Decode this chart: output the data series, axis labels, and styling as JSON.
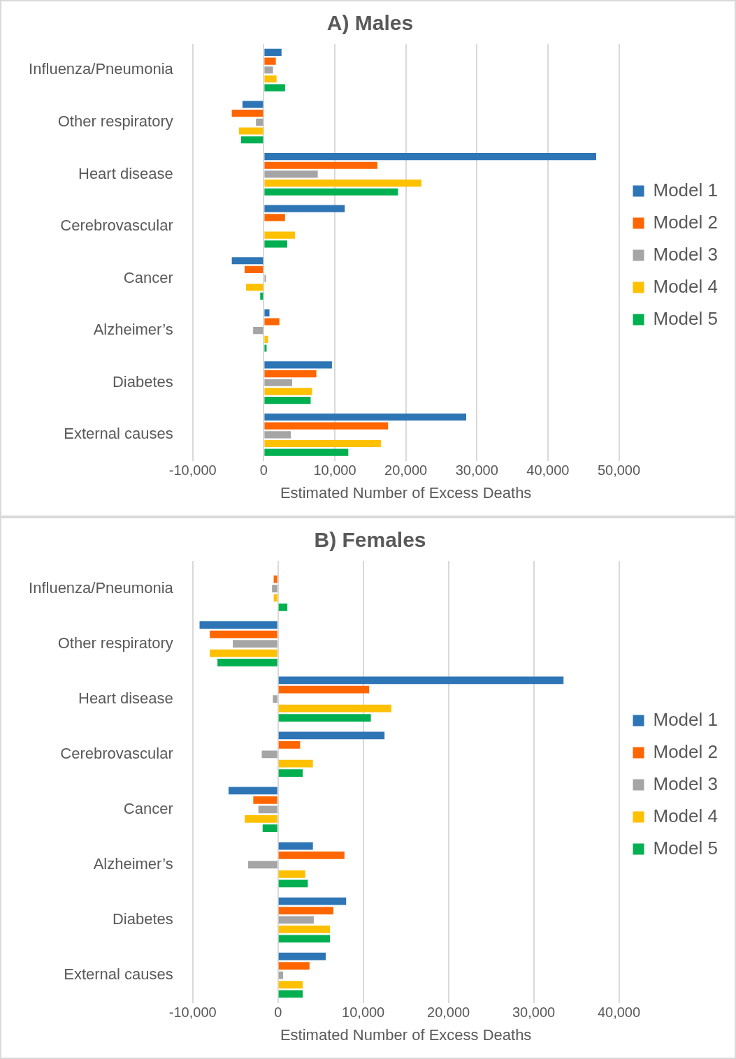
{
  "chart_data": [
    {
      "type": "bar",
      "title": "A) Males",
      "xlabel": "Estimated Number of Excess Deaths",
      "orientation": "horizontal",
      "categories": [
        "Influenza/Pneumonia",
        "Other respiratory",
        "Heart disease",
        "Cerebrovascular",
        "Cancer",
        "Alzheimer’s",
        "Diabetes",
        "External causes"
      ],
      "series": [
        {
          "name": "Model 1",
          "color": "#2e75b6",
          "values": [
            2500,
            -3000,
            46800,
            11400,
            -4500,
            800,
            9600,
            28500
          ]
        },
        {
          "name": "Model 2",
          "color": "#ff6600",
          "values": [
            1700,
            -4500,
            16000,
            3000,
            -2700,
            2200,
            7400,
            17500
          ]
        },
        {
          "name": "Model 3",
          "color": "#a5a5a5",
          "values": [
            1300,
            -1100,
            7600,
            null,
            300,
            -1500,
            4000,
            3800
          ]
        },
        {
          "name": "Model 4",
          "color": "#ffc000",
          "values": [
            1800,
            -3500,
            22200,
            4400,
            -2500,
            600,
            6800,
            16500
          ]
        },
        {
          "name": "Model 5",
          "color": "#00b050",
          "values": [
            3000,
            -3200,
            18900,
            3300,
            -500,
            400,
            6600,
            11900
          ]
        }
      ],
      "xlim": [
        -10000,
        50000
      ],
      "xticks": [
        {
          "value": -10000,
          "label": "-10,000"
        },
        0,
        {
          "value": 10000,
          "label": "10,000"
        },
        {
          "value": 20000,
          "label": "20,000"
        },
        {
          "value": 30000,
          "label": "30,000"
        },
        {
          "value": 40000,
          "label": "40,000"
        },
        {
          "value": 50000,
          "label": "50,000"
        }
      ],
      "grid": "x",
      "legend": "right"
    },
    {
      "type": "bar",
      "title": "B) Females",
      "xlabel": "Estimated Number of Excess Deaths",
      "orientation": "horizontal",
      "categories": [
        "Influenza/Pneumonia",
        "Other respiratory",
        "Heart disease",
        "Cerebrovascular",
        "Cancer",
        "Alzheimer’s",
        "Diabetes",
        "External causes"
      ],
      "series": [
        {
          "name": "Model 1",
          "color": "#2e75b6",
          "values": [
            null,
            -9200,
            33500,
            12500,
            -5800,
            4100,
            8000,
            5600
          ]
        },
        {
          "name": "Model 2",
          "color": "#ff6600",
          "values": [
            -500,
            -8000,
            10700,
            2600,
            -2900,
            7800,
            6500,
            3700
          ]
        },
        {
          "name": "Model 3",
          "color": "#a5a5a5",
          "values": [
            -700,
            -5300,
            -600,
            -1900,
            -2300,
            -3500,
            4200,
            600
          ]
        },
        {
          "name": "Model 4",
          "color": "#ffc000",
          "values": [
            -500,
            -8000,
            13300,
            4100,
            -3900,
            3200,
            6100,
            2900
          ]
        },
        {
          "name": "Model 5",
          "color": "#00b050",
          "values": [
            1100,
            -7100,
            10900,
            2900,
            -1800,
            3500,
            6100,
            2900
          ]
        }
      ],
      "xlim": [
        -10000,
        40000
      ],
      "xticks": [
        {
          "value": -10000,
          "label": "-10,000"
        },
        0,
        {
          "value": 10000,
          "label": "10,000"
        },
        {
          "value": 20000,
          "label": "20,000"
        },
        {
          "value": 30000,
          "label": "30,000"
        },
        {
          "value": 40000,
          "label": "40,000"
        }
      ],
      "grid": "x",
      "legend": "right"
    }
  ]
}
